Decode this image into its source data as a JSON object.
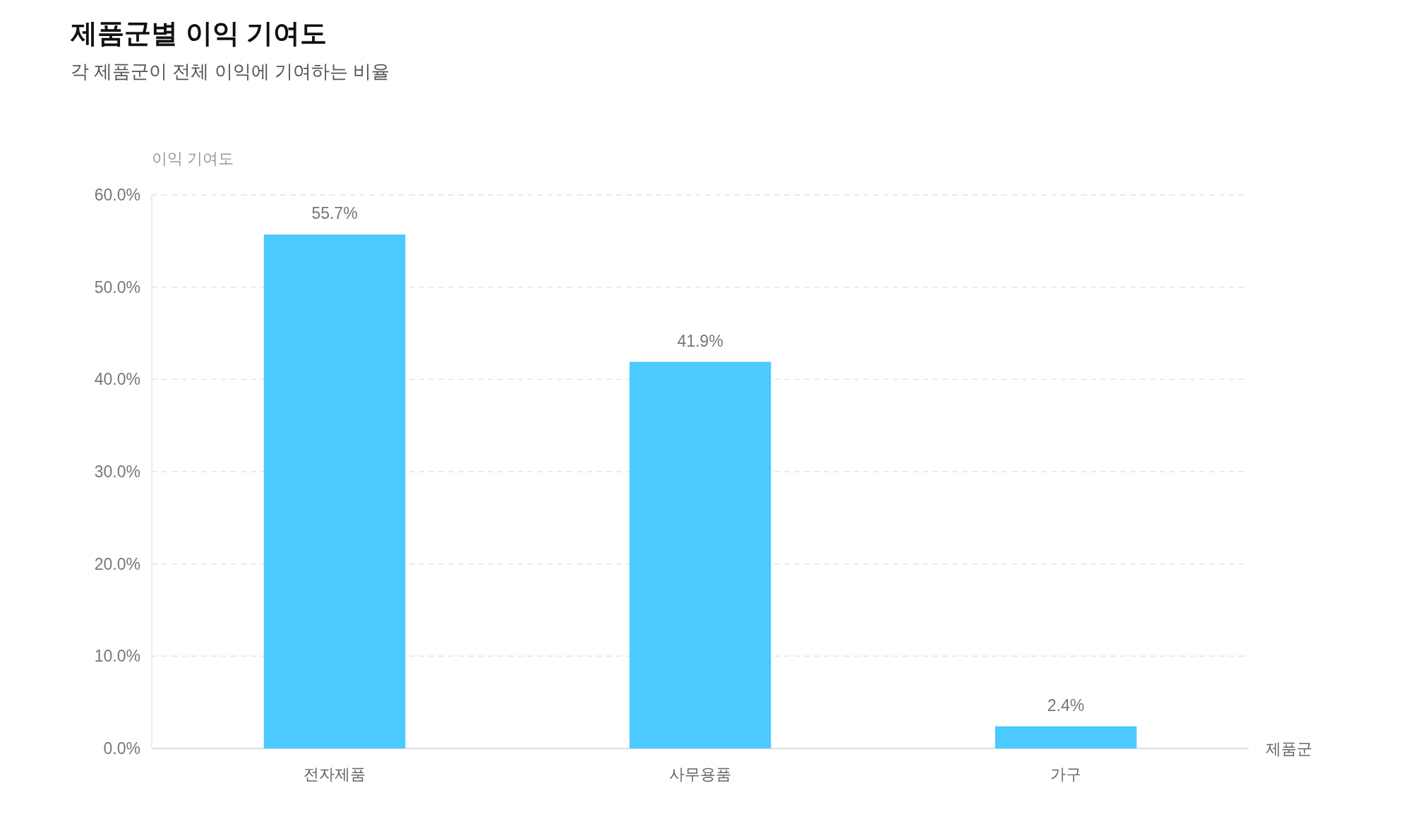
{
  "chart_data": {
    "type": "bar",
    "title": "제품군별 이익 기여도",
    "subtitle": "각 제품군이 전체 이익에 기여하는 비율",
    "ylabel": "이익 기여도",
    "xlabel": "제품군",
    "categories": [
      "전자제품",
      "사무용품",
      "가구"
    ],
    "values": [
      55.7,
      41.9,
      2.4
    ],
    "value_labels": [
      "55.7%",
      "41.9%",
      "2.4%"
    ],
    "color": "#4cc9ff",
    "ylim": [
      0,
      60
    ],
    "yticks": [
      {
        "value": 0,
        "label": "0.0%"
      },
      {
        "value": 10,
        "label": "10.0%"
      },
      {
        "value": 20,
        "label": "20.0%"
      },
      {
        "value": 30,
        "label": "30.0%"
      },
      {
        "value": 40,
        "label": "40.0%"
      },
      {
        "value": 50,
        "label": "50.0%"
      },
      {
        "value": 60,
        "label": "60.0%"
      }
    ],
    "grid": "y"
  }
}
